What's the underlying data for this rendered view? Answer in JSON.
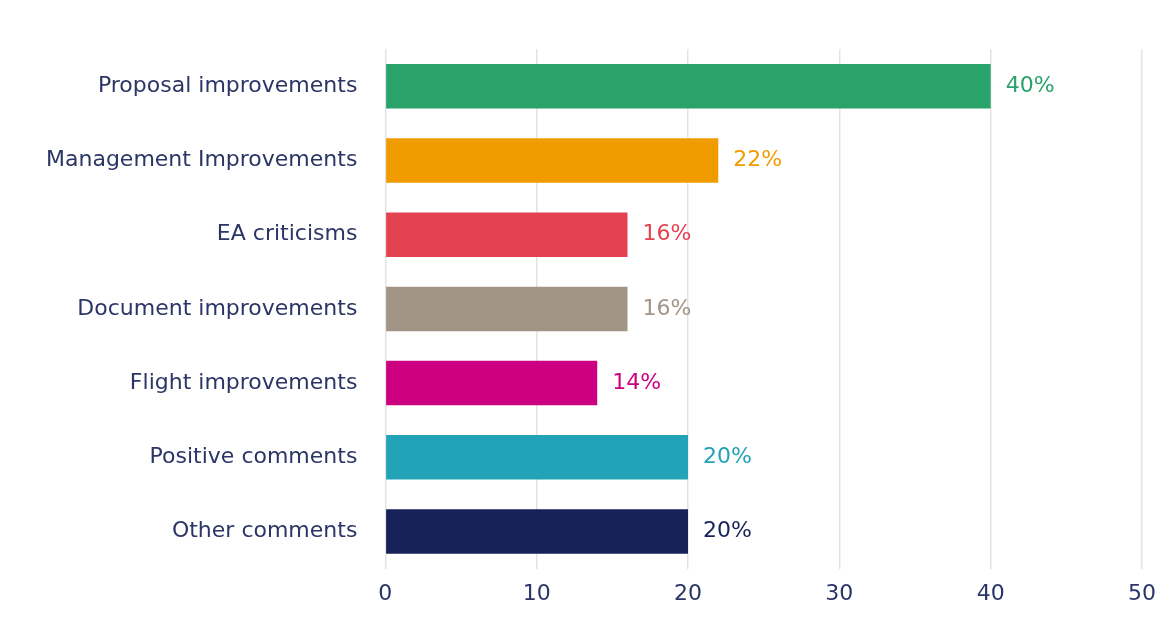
{
  "chart_data": {
    "type": "bar",
    "orientation": "horizontal",
    "categories": [
      "Proposal improvements",
      "Management Improvements",
      "EA criticisms",
      "Document improvements",
      "Flight improvements",
      "Positive comments",
      "Other comments"
    ],
    "values": [
      40,
      22,
      16,
      16,
      14,
      20,
      20
    ],
    "colors": [
      "#2aa36b",
      "#f09c00",
      "#e34350",
      "#a39585",
      "#cc0080",
      "#22a3b8",
      "#172259"
    ],
    "value_labels": [
      "40%",
      "22%",
      "16%",
      "16%",
      "14%",
      "20%",
      "20%"
    ],
    "xlim": [
      0,
      50
    ],
    "xticks": [
      0,
      10,
      20,
      30,
      40,
      50
    ],
    "grid": "x",
    "legend": false
  }
}
